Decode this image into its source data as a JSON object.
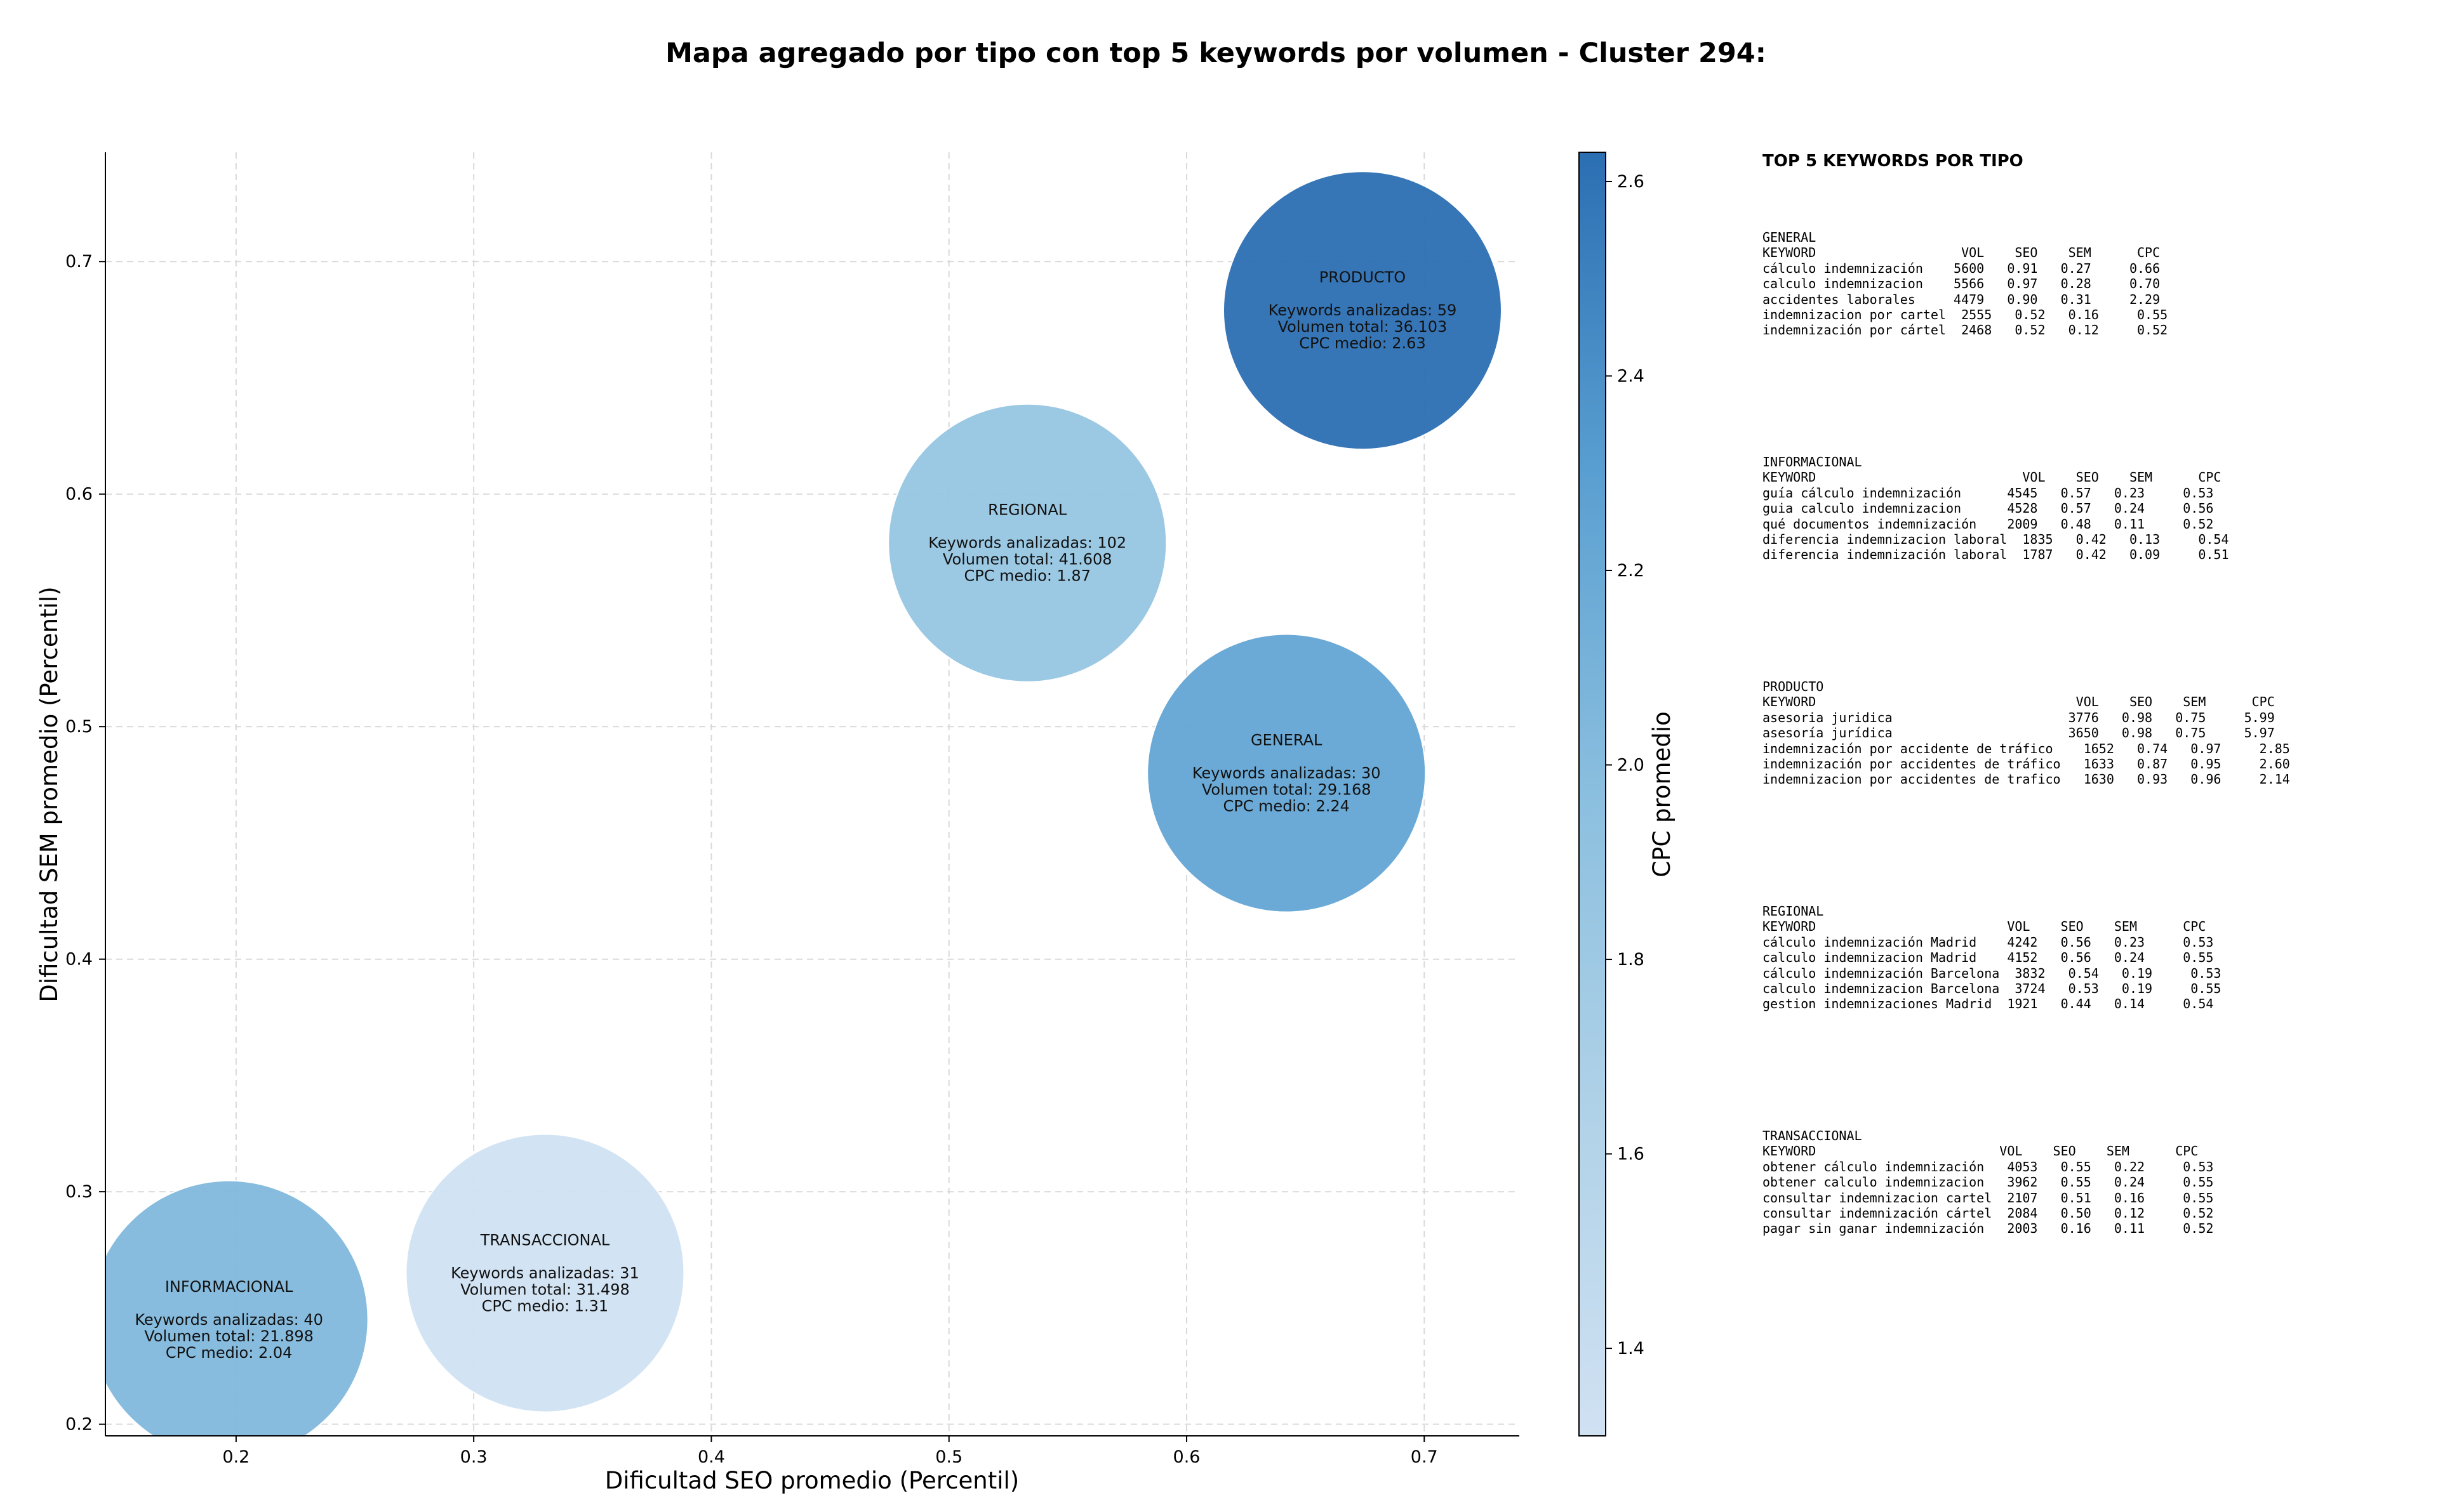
{
  "chart_data": {
    "type": "scatter",
    "title": "Mapa agregado por tipo con top 5 keywords por volumen - Cluster 294:",
    "xlabel": "Dificultad SEO promedio (Percentil)",
    "ylabel": "Dificultad SEM promedio (Percentil)",
    "xlim": [
      0.145,
      0.74
    ],
    "ylim": [
      0.195,
      0.747
    ],
    "xticks": [
      0.2,
      0.3,
      0.4,
      0.5,
      0.6,
      0.7
    ],
    "yticks": [
      0.2,
      0.3,
      0.4,
      0.5,
      0.6,
      0.7
    ],
    "grid": true,
    "colorbar": {
      "label": "CPC promedio",
      "range": [
        1.31,
        2.63
      ],
      "ticks": [
        1.4,
        1.6,
        1.8,
        2.0,
        2.2,
        2.4,
        2.6
      ],
      "colormap": "Blues"
    },
    "points": [
      {
        "type": "INFORMACIONAL",
        "x": 0.197,
        "y": 0.245,
        "keywords": 40,
        "volume": "21.898",
        "cpc": 2.04,
        "label_title": "INFORMACIONAL",
        "label_keywords": "Keywords analizadas: 40",
        "label_volume": "Volumen total: 21.898",
        "label_cpc": "CPC medio: 2.04"
      },
      {
        "type": "TRANSACCIONAL",
        "x": 0.33,
        "y": 0.265,
        "keywords": 31,
        "volume": "31.498",
        "cpc": 1.31,
        "label_title": "TRANSACCIONAL",
        "label_keywords": "Keywords analizadas: 31",
        "label_volume": "Volumen total: 31.498",
        "label_cpc": "CPC medio: 1.31"
      },
      {
        "type": "REGIONAL",
        "x": 0.533,
        "y": 0.579,
        "keywords": 102,
        "volume": "41.608",
        "cpc": 1.87,
        "label_title": "REGIONAL",
        "label_keywords": "Keywords analizadas: 102",
        "label_volume": "Volumen total: 41.608",
        "label_cpc": "CPC medio: 1.87"
      },
      {
        "type": "GENERAL",
        "x": 0.642,
        "y": 0.48,
        "keywords": 30,
        "volume": "29.168",
        "cpc": 2.24,
        "label_title": "GENERAL",
        "label_keywords": "Keywords analizadas: 30",
        "label_volume": "Volumen total: 29.168",
        "label_cpc": "CPC medio: 2.24"
      },
      {
        "type": "PRODUCTO",
        "x": 0.674,
        "y": 0.679,
        "keywords": 59,
        "volume": "36.103",
        "cpc": 2.63,
        "label_title": "PRODUCTO",
        "label_keywords": "Keywords analizadas: 59",
        "label_volume": "Volumen total: 36.103",
        "label_cpc": "CPC medio: 2.63"
      }
    ]
  },
  "keyword_panel": {
    "title": "TOP 5 KEYWORDS POR TIPO",
    "blocks": [
      {
        "name": "GENERAL",
        "lines": [
          "GENERAL",
          "KEYWORD                   VOL    SEO    SEM      CPC",
          "cálculo indemnización    5600   0.91   0.27     0.66",
          "calculo indemnizacion    5566   0.97   0.28     0.70",
          "accidentes laborales     4479   0.90   0.31     2.29",
          "indemnizacion por cartel  2555   0.52   0.16     0.55",
          "indemnización por cártel  2468   0.52   0.12     0.52"
        ]
      },
      {
        "name": "INFORMACIONAL",
        "lines": [
          "INFORMACIONAL",
          "KEYWORD                           VOL    SEO    SEM      CPC",
          "guía cálculo indemnización      4545   0.57   0.23     0.53",
          "guia calculo indemnizacion      4528   0.57   0.24     0.56",
          "qué documentos indemnización    2009   0.48   0.11     0.52",
          "diferencia indemnizacion laboral  1835   0.42   0.13     0.54",
          "diferencia indemnización laboral  1787   0.42   0.09     0.51"
        ]
      },
      {
        "name": "PRODUCTO",
        "lines": [
          "PRODUCTO",
          "KEYWORD                                  VOL    SEO    SEM      CPC",
          "asesoria juridica                       3776   0.98   0.75     5.99",
          "asesoría jurídica                       3650   0.98   0.75     5.97",
          "indemnización por accidente de tráfico    1652   0.74   0.97     2.85",
          "indemnización por accidentes de tráfico   1633   0.87   0.95     2.60",
          "indemnizacion por accidentes de trafico   1630   0.93   0.96     2.14"
        ]
      },
      {
        "name": "REGIONAL",
        "lines": [
          "REGIONAL",
          "KEYWORD                         VOL    SEO    SEM      CPC",
          "cálculo indemnización Madrid    4242   0.56   0.23     0.53",
          "calculo indemnizacion Madrid    4152   0.56   0.24     0.55",
          "cálculo indemnización Barcelona  3832   0.54   0.19     0.53",
          "calculo indemnizacion Barcelona  3724   0.53   0.19     0.55",
          "gestion indemnizaciones Madrid  1921   0.44   0.14     0.54"
        ]
      },
      {
        "name": "TRANSACCIONAL",
        "lines": [
          "TRANSACCIONAL",
          "KEYWORD                        VOL    SEO    SEM      CPC",
          "obtener cálculo indemnización   4053   0.55   0.22     0.53",
          "obtener calculo indemnizacion   3962   0.55   0.24     0.55",
          "consultar indemnizacion cartel  2107   0.51   0.16     0.55",
          "consultar indemnización cártel  2084   0.50   0.12     0.52",
          "pagar sin ganar indemnización   2003   0.16   0.11     0.52"
        ]
      }
    ]
  }
}
